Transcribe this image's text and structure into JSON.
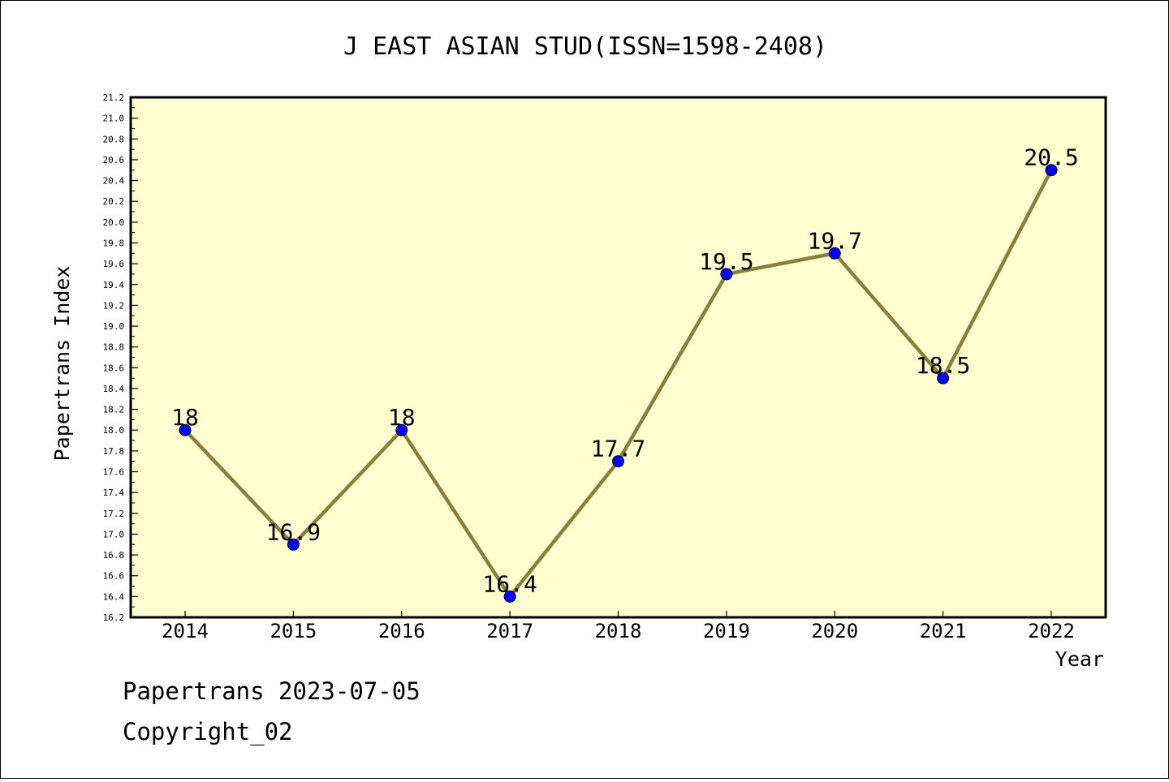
{
  "chart_data": {
    "type": "line",
    "title": "J EAST ASIAN STUD(ISSN=1598-2408)",
    "xlabel": "Year",
    "ylabel": "Papertrans Index",
    "x": [
      "2014",
      "2015",
      "2016",
      "2017",
      "2018",
      "2019",
      "2020",
      "2021",
      "2022"
    ],
    "series": [
      {
        "values": [
          18,
          16.9,
          18,
          16.4,
          17.7,
          19.5,
          19.7,
          18.5,
          20.5
        ],
        "point_labels": [
          "18",
          "16.9",
          "18",
          "16.4",
          "17.7",
          "19.5",
          "19.7",
          "18.5",
          "20.5"
        ],
        "line_color": "#8b7d3a",
        "marker_color": "#0000ff"
      }
    ],
    "ylim": [
      16.2,
      21.2
    ],
    "y_ticks": [
      "16.2",
      "16.4",
      "16.6",
      "16.8",
      "17.0",
      "17.2",
      "17.4",
      "17.6",
      "17.8",
      "18.0",
      "18.2",
      "18.4",
      "18.6",
      "18.8",
      "19.0",
      "19.2",
      "19.4",
      "19.6",
      "19.8",
      "20.0",
      "20.2",
      "20.4",
      "20.6",
      "20.8",
      "21.0",
      "21.2"
    ],
    "plot_background": "#ffffd0",
    "grid": false,
    "legend": "none"
  },
  "footer": {
    "source": "Papertrans 2023-07-05",
    "copyright": "Copyright_02"
  }
}
